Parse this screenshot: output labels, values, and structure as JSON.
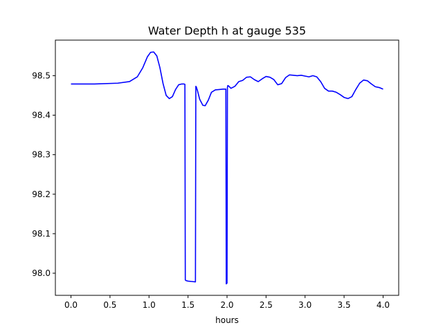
{
  "chart_data": {
    "type": "line",
    "title": "Water Depth h at gauge 535",
    "xlabel": "hours",
    "ylabel": "",
    "xlim": [
      -0.2,
      4.2
    ],
    "ylim": [
      97.944,
      98.59
    ],
    "xticks": [
      0.0,
      0.5,
      1.0,
      1.5,
      2.0,
      2.5,
      3.0,
      3.5,
      4.0
    ],
    "xtick_labels": [
      "0.0",
      "0.5",
      "1.0",
      "1.5",
      "2.0",
      "2.5",
      "3.0",
      "3.5",
      "4.0"
    ],
    "yticks": [
      98.0,
      98.1,
      98.2,
      98.3,
      98.4,
      98.5
    ],
    "ytick_labels": [
      "98.0",
      "98.1",
      "98.2",
      "98.3",
      "98.4",
      "98.5"
    ],
    "grid": false,
    "line_color": "#0000ff",
    "series": [
      {
        "x": [
          0.0,
          0.3,
          0.6,
          0.75,
          0.85,
          0.92,
          0.98,
          1.02,
          1.06,
          1.1,
          1.14,
          1.18,
          1.22,
          1.26,
          1.3,
          1.34,
          1.38,
          1.42,
          1.45,
          1.46,
          1.465,
          1.47,
          1.48,
          1.5,
          1.55,
          1.595,
          1.6,
          1.605,
          1.62,
          1.65,
          1.69,
          1.72,
          1.76,
          1.8,
          1.85,
          1.9,
          1.95,
          1.985,
          1.99,
          2.0,
          2.005,
          2.01,
          2.02,
          2.05,
          2.1,
          2.15,
          2.2,
          2.25,
          2.3,
          2.35,
          2.4,
          2.45,
          2.5,
          2.55,
          2.6,
          2.65,
          2.7,
          2.75,
          2.8,
          2.85,
          2.9,
          2.95,
          3.0,
          3.05,
          3.1,
          3.15,
          3.2,
          3.25,
          3.3,
          3.35,
          3.4,
          3.45,
          3.5,
          3.55,
          3.6,
          3.65,
          3.7,
          3.75,
          3.8,
          3.85,
          3.9,
          3.95,
          4.0
        ],
        "y": [
          98.479,
          98.479,
          98.481,
          98.485,
          98.497,
          98.52,
          98.548,
          98.559,
          98.56,
          98.55,
          98.52,
          98.48,
          98.45,
          98.442,
          98.447,
          98.465,
          98.477,
          98.479,
          98.479,
          98.478,
          97.983,
          97.982,
          97.981,
          97.98,
          97.979,
          97.978,
          98.473,
          98.472,
          98.463,
          98.44,
          98.425,
          98.424,
          98.438,
          98.458,
          98.464,
          98.465,
          98.466,
          98.466,
          97.973,
          97.975,
          98.47,
          98.475,
          98.474,
          98.468,
          98.473,
          98.485,
          98.488,
          98.496,
          98.497,
          98.49,
          98.485,
          98.492,
          98.498,
          98.496,
          98.49,
          98.477,
          98.48,
          98.495,
          98.502,
          98.501,
          98.5,
          98.501,
          98.499,
          98.497,
          98.5,
          98.497,
          98.485,
          98.468,
          98.461,
          98.461,
          98.458,
          98.452,
          98.445,
          98.442,
          98.447,
          98.465,
          98.481,
          98.489,
          98.487,
          98.479,
          98.472,
          98.47,
          98.466
        ]
      }
    ]
  }
}
